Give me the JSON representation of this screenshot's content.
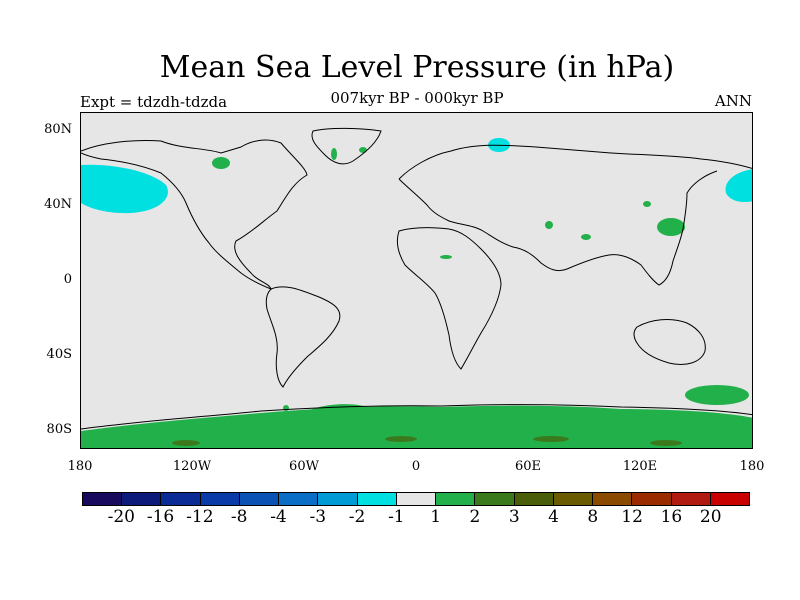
{
  "title": "Mean Sea Level Pressure (in hPa)",
  "subtitle": "007kyr BP - 000kyr BP",
  "experiment_label": "Expt = tdzdh-tdzda",
  "season_label": "ANN",
  "colors": {
    "background_field": "#e6e6e6",
    "negative_anomaly": "#00e0e0",
    "positive_anomaly": "#22b04a",
    "strong_positive": "#3b7a1c",
    "coastline": "#000000"
  },
  "lat_ticks": [
    "80N",
    "40N",
    "0",
    "40S",
    "80S"
  ],
  "lon_ticks": [
    "180",
    "120W",
    "60W",
    "0",
    "60E",
    "120E",
    "180"
  ],
  "colorbar": {
    "colors": [
      "#1a0a5e",
      "#0d1a7a",
      "#0a2a96",
      "#0a3aa8",
      "#0a52b4",
      "#0a6ec6",
      "#009ad4",
      "#00e0e0",
      "#e6e6e6",
      "#22b04a",
      "#3a7a1c",
      "#4a5e0a",
      "#6a5a00",
      "#8a4a00",
      "#9a2a00",
      "#b01a10",
      "#c80000"
    ],
    "labels": [
      "-20",
      "-16",
      "-12",
      "-8",
      "-4",
      "-3",
      "-2",
      "-1",
      "1",
      "2",
      "3",
      "4",
      "8",
      "12",
      "16",
      "20"
    ]
  }
}
